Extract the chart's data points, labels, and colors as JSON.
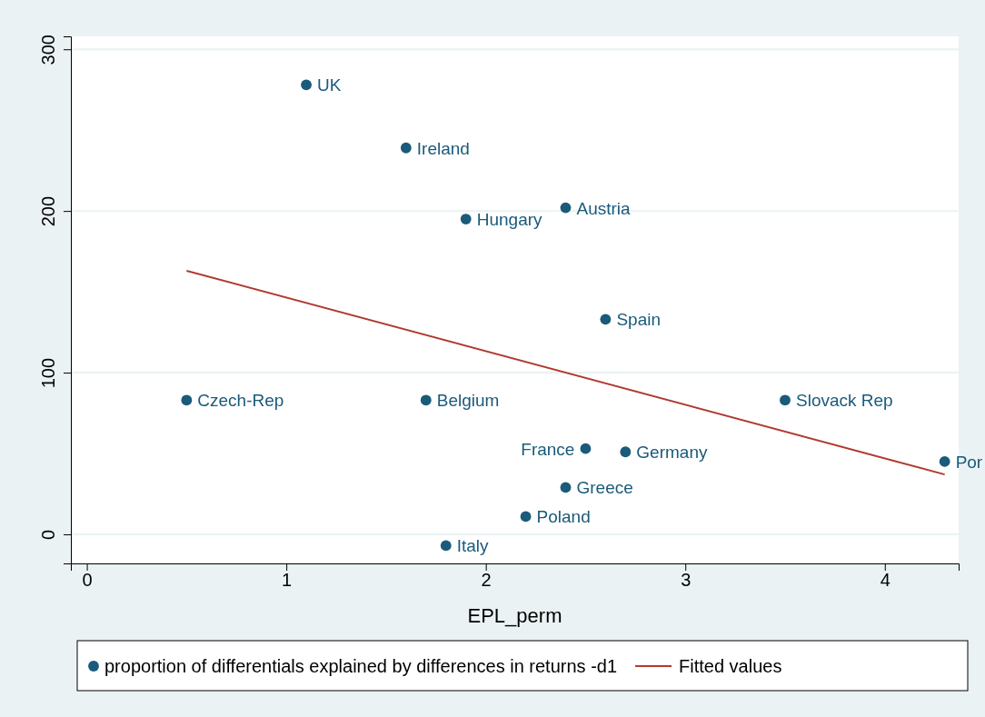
{
  "chart_data": {
    "type": "scatter",
    "xlabel": "EPL_perm",
    "xlim": [
      -0.08,
      4.37
    ],
    "xticks": [
      0,
      1,
      2,
      3,
      4
    ],
    "ylim": [
      -18,
      308
    ],
    "yticks": [
      0,
      100,
      200,
      300
    ],
    "grid": "y",
    "legend": "bottom",
    "marker": "circle",
    "series": [
      {
        "name": "proportion of differentials explained by differences in returns -d1",
        "color": "#1a5a7a",
        "x": [
          1.1,
          1.6,
          1.9,
          2.4,
          2.6,
          0.5,
          1.7,
          3.5,
          2.5,
          2.7,
          2.4,
          2.2,
          1.8,
          4.3
        ],
        "values": [
          278,
          239,
          195,
          202,
          133,
          83,
          83,
          83,
          53,
          51,
          29,
          11,
          -7,
          45
        ]
      },
      {
        "name": "Fitted values",
        "type": "line",
        "marker": "none",
        "color": "#b03a2e",
        "x": [
          0.5,
          4.3
        ],
        "values": [
          163,
          37
        ]
      }
    ],
    "annotations": [
      {
        "text": "UK",
        "x": 1.1,
        "y": 278
      },
      {
        "text": "Ireland",
        "x": 1.6,
        "y": 239
      },
      {
        "text": "Hungary",
        "x": 1.9,
        "y": 195
      },
      {
        "text": "Austria",
        "x": 2.4,
        "y": 202
      },
      {
        "text": "Spain",
        "x": 2.6,
        "y": 133
      },
      {
        "text": "Czech-Rep",
        "x": 0.5,
        "y": 83
      },
      {
        "text": "Belgium",
        "x": 1.7,
        "y": 83
      },
      {
        "text": "Slovack Rep",
        "x": 3.5,
        "y": 83
      },
      {
        "text": "France",
        "x": 2.5,
        "y": 53
      },
      {
        "text": "Germany",
        "x": 2.7,
        "y": 51
      },
      {
        "text": "Greece",
        "x": 2.4,
        "y": 29
      },
      {
        "text": "Poland",
        "x": 2.2,
        "y": 11
      },
      {
        "text": "Italy",
        "x": 1.8,
        "y": -7
      },
      {
        "text": "Por",
        "x": 4.3,
        "y": 45
      }
    ]
  }
}
